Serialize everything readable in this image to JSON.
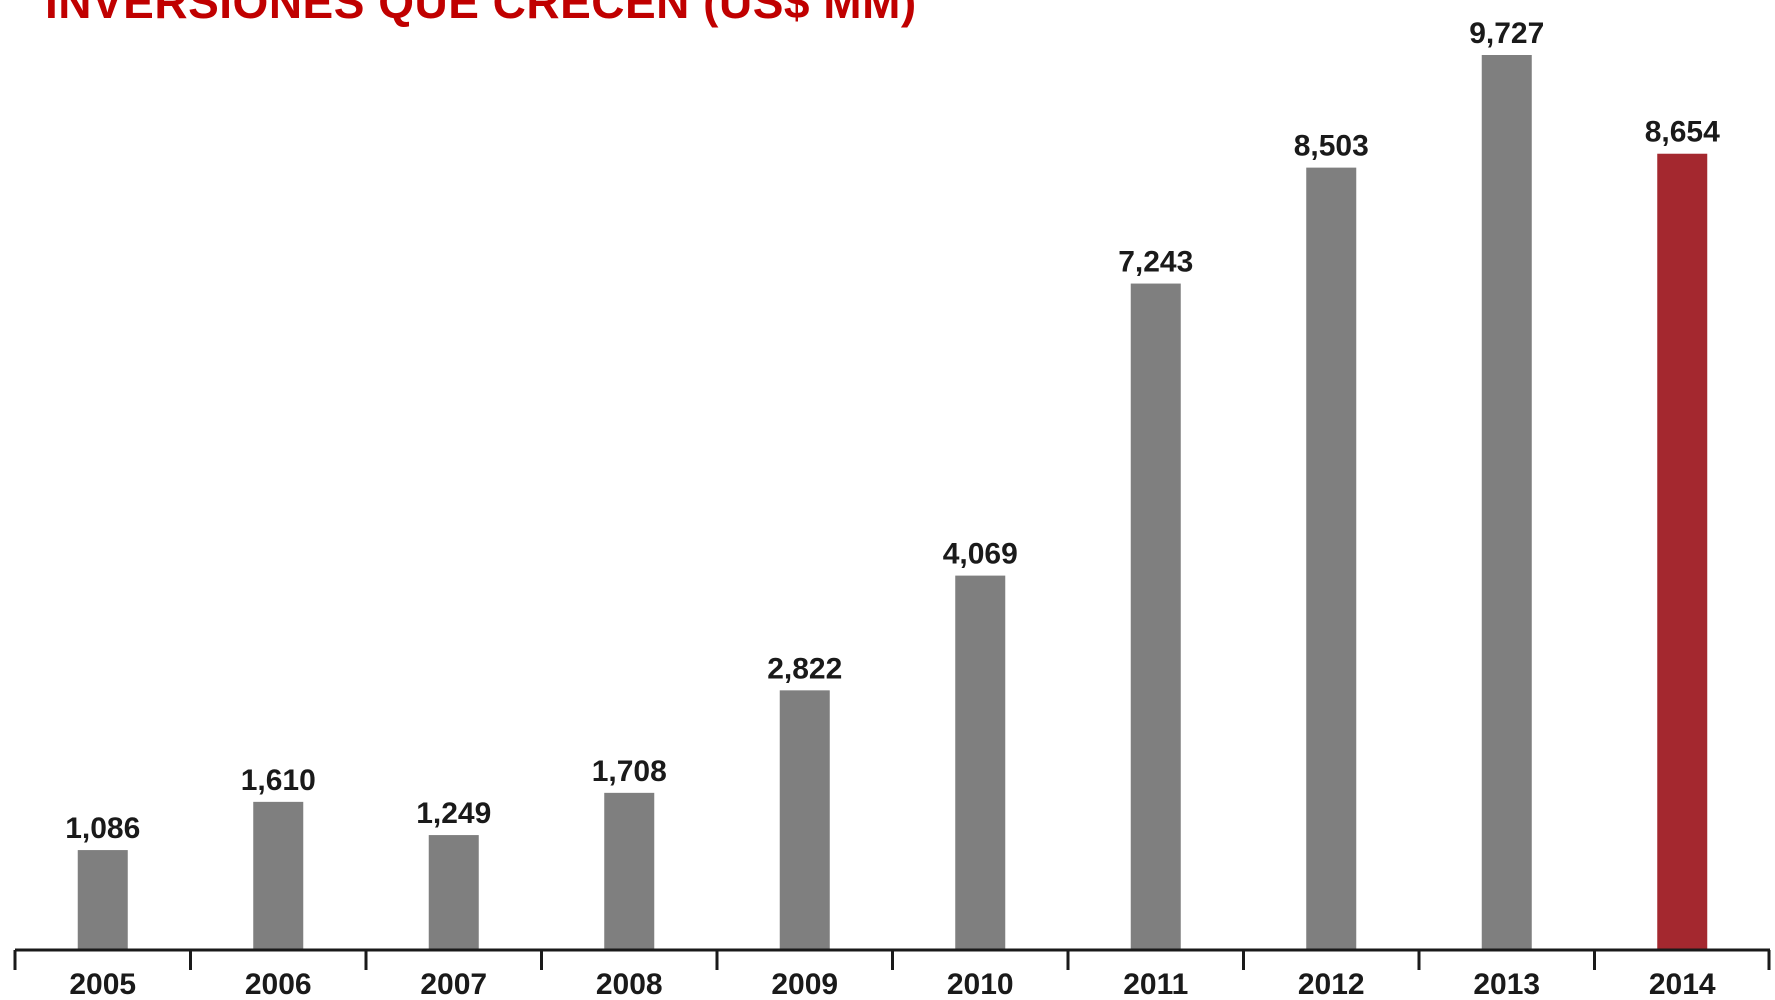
{
  "chart_data": {
    "type": "bar",
    "title": "INVERSIONES QUE CRECEN (US$ MM)",
    "categories": [
      "2005",
      "2006",
      "2007",
      "2008",
      "2009",
      "2010",
      "2011",
      "2012",
      "2013",
      "2014"
    ],
    "values": [
      1086,
      1610,
      1249,
      1708,
      2822,
      4069,
      7243,
      8503,
      9727,
      8654
    ],
    "value_labels": [
      "1,086",
      "1,610",
      "1,249",
      "1,708",
      "2,822",
      "4,069",
      "7,243",
      "8,503",
      "9,727",
      "8,654"
    ],
    "xlabel": "",
    "ylabel": "",
    "ylim": [
      0,
      10000
    ],
    "grid": false,
    "legend": "none",
    "highlight_category": "2014"
  },
  "colors": {
    "title": "#c00000",
    "bar": "#7f7f7f",
    "highlight_bar": "#a4282f",
    "axis": "#1a1a1a",
    "text": "#1a1a1a"
  }
}
